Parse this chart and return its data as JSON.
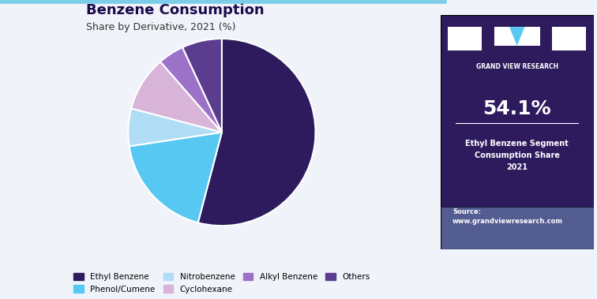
{
  "title_main": "Benzene Consumption",
  "title_sub": "Share by Derivative, 2021 (%)",
  "slices": [
    54.1,
    18.5,
    6.5,
    9.5,
    4.5,
    6.9
  ],
  "labels": [
    "Ethyl Benzene",
    "Phenol/Cumene",
    "Nitrobenzene",
    "Cyclohexane",
    "Alkyl Benzene",
    "Others"
  ],
  "colors": [
    "#2d1b5e",
    "#57c8f2",
    "#b0dcf5",
    "#d8b4d8",
    "#9b72c8",
    "#5b3d8f"
  ],
  "bg_color": "#f0f4fa",
  "right_bg_color": "#2d1b5e",
  "highlight_value": "54.1%",
  "highlight_label": "Ethyl Benzene Segment\nConsumption Share\n2021",
  "source_text": "Source:\nwww.grandviewresearch.com",
  "title_color": "#1a0a4a",
  "subtitle_color": "#333333"
}
